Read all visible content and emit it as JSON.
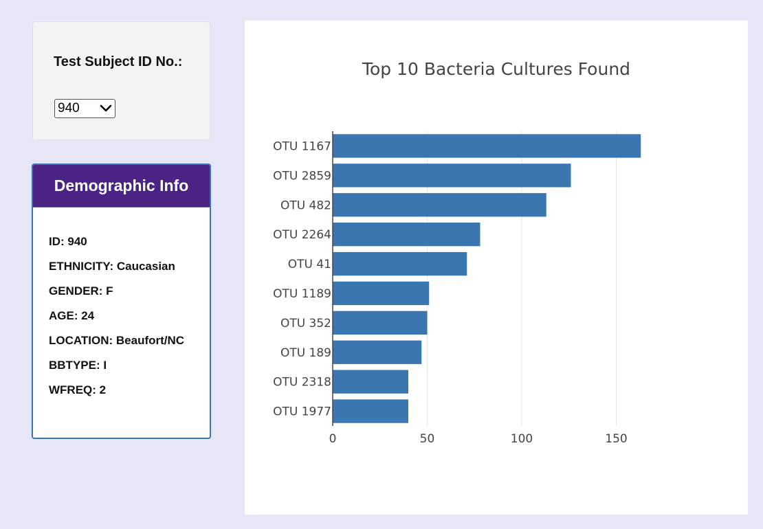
{
  "selector": {
    "label": "Test Subject ID No.:",
    "selected": "940"
  },
  "demographics": {
    "title": "Demographic Info",
    "items": [
      "ID: 940",
      "ETHNICITY: Caucasian",
      "GENDER: F",
      "AGE: 24",
      "LOCATION: Beaufort/NC",
      "BBTYPE: I",
      "WFREQ: 2"
    ]
  },
  "colors": {
    "bar": "#3a76b0",
    "header": "#4a2384",
    "background": "#e6e6f7"
  },
  "chart_data": {
    "type": "bar",
    "orientation": "horizontal",
    "title": "Top 10 Bacteria Cultures Found",
    "categories": [
      "OTU 1167",
      "OTU 2859",
      "OTU 482",
      "OTU 2264",
      "OTU 41",
      "OTU 1189",
      "OTU 352",
      "OTU 189",
      "OTU 2318",
      "OTU 1977"
    ],
    "values": [
      163,
      126,
      113,
      78,
      71,
      51,
      50,
      47,
      40,
      40
    ],
    "xticks": [
      "0",
      "50",
      "100",
      "150"
    ],
    "xlim": [
      0,
      172
    ],
    "xlabel": "",
    "ylabel": "",
    "grid": true
  }
}
